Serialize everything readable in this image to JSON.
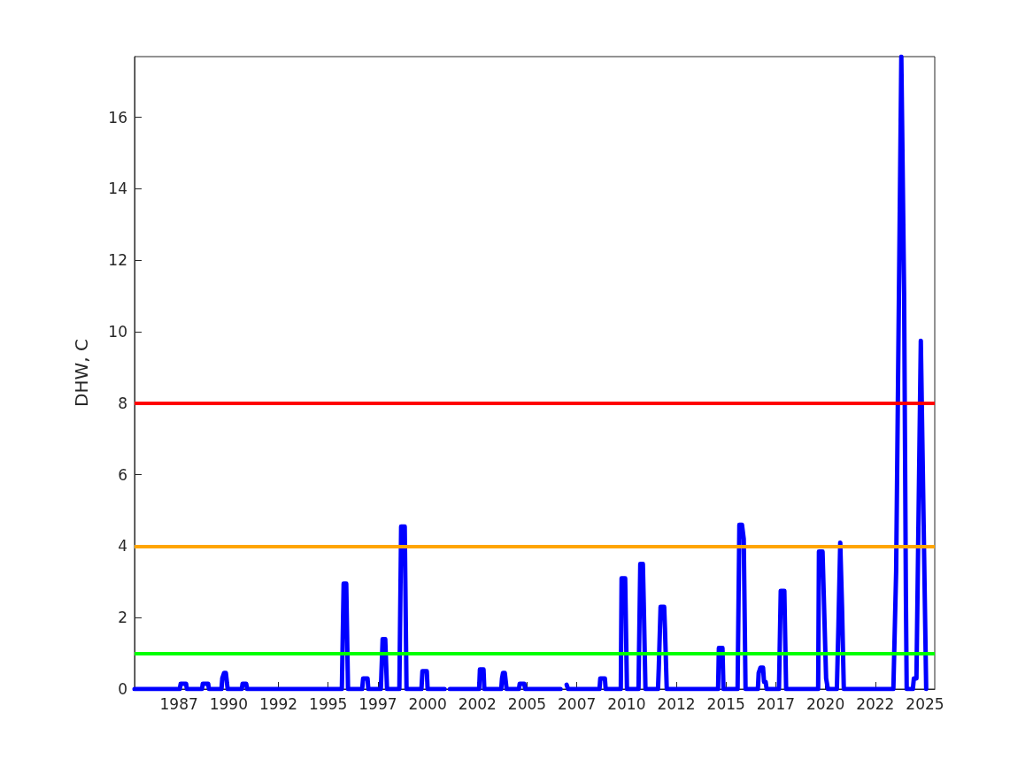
{
  "chart_data": {
    "type": "line",
    "ylabel": "DHW, C",
    "x": [
      1985.27,
      1987.54,
      1987.59,
      1987.86,
      1987.9,
      1988.66,
      1988.7,
      1988.97,
      1989.01,
      1989.64,
      1989.68,
      1989.77,
      1989.86,
      1989.95,
      1990.66,
      1990.7,
      1990.88,
      1990.93,
      1995.69,
      1995.78,
      1995.91,
      1996.0,
      1996.71,
      1996.76,
      1996.98,
      1997.02,
      1997.65,
      1997.74,
      1997.87,
      1997.96,
      1998.58,
      1998.67,
      1998.85,
      1998.94,
      1999.69,
      1999.74,
      1999.96,
      2000.0,
      2000.85,
      2000.95,
      2001.12,
      2002.59,
      2002.63,
      2002.81,
      2002.85,
      2003.7,
      2003.74,
      2003.79,
      2003.88,
      2003.97,
      2004.59,
      2004.63,
      2004.86,
      2004.9,
      2006.68,
      2006.75,
      2006.99,
      2007.06,
      2008.64,
      2008.68,
      2008.91,
      2008.95,
      2009.71,
      2009.75,
      2009.93,
      2010.02,
      2010.6,
      2010.69,
      2010.82,
      2010.86,
      2010.95,
      2011.58,
      2011.62,
      2011.71,
      2011.89,
      2011.93,
      2012.02,
      2014.6,
      2014.64,
      2014.82,
      2014.87,
      2015.58,
      2015.67,
      2015.8,
      2015.89,
      2015.98,
      2016.6,
      2016.64,
      2016.73,
      2016.86,
      2016.91,
      2016.99,
      2017.04,
      2017.66,
      2017.75,
      2017.93,
      2018.02,
      2019.63,
      2019.67,
      2019.85,
      2020.03,
      2020.12,
      2020.57,
      2020.65,
      2020.74,
      2020.83,
      2020.92,
      2023.41,
      2023.55,
      2023.81,
      2023.95,
      2024.04,
      2024.08,
      2024.39,
      2024.44,
      2024.57,
      2024.79,
      2025.06
    ],
    "series": [
      {
        "color": "#0000ff",
        "values": [
          0,
          0,
          0.15,
          0.15,
          0,
          0,
          0.15,
          0.15,
          0,
          0,
          0.3,
          0.45,
          0.45,
          0,
          0,
          0.15,
          0.15,
          0,
          0,
          2.95,
          2.95,
          0,
          0,
          0.3,
          0.3,
          0,
          0,
          1.4,
          1.4,
          0,
          0,
          4.55,
          4.55,
          0,
          0,
          0.5,
          0.5,
          0,
          0,
          null,
          0,
          0,
          0.55,
          0.55,
          0,
          0,
          0.3,
          0.45,
          0.45,
          0,
          0,
          0.15,
          0.15,
          0,
          0,
          null,
          0.12,
          0,
          0,
          0.3,
          0.3,
          0,
          0,
          3.1,
          3.1,
          0,
          0,
          3.5,
          3.5,
          2.5,
          0,
          0,
          0.6,
          2.3,
          2.3,
          1.7,
          0,
          0,
          1.15,
          1.15,
          0,
          0,
          4.6,
          4.6,
          4.2,
          0,
          0,
          0.45,
          0.6,
          0.6,
          0.2,
          0.2,
          0,
          0,
          2.75,
          2.75,
          0,
          0,
          3.85,
          3.85,
          0.3,
          0,
          0,
          1.8,
          4.1,
          2.3,
          0,
          0,
          3.3,
          17.7,
          11.1,
          2.6,
          0,
          0,
          0.3,
          0.3,
          9.75,
          0
        ]
      }
    ],
    "xlim": [
      1985.27,
      2025.49
    ],
    "ylim": [
      0,
      17.7
    ],
    "xticks": [
      {
        "value": 1987.5,
        "label": "1987"
      },
      1990,
      {
        "value": 1992.5,
        "label": "1992"
      },
      1995,
      {
        "value": 1997.5,
        "label": "1997"
      },
      2000,
      {
        "value": 2002.5,
        "label": "2002"
      },
      2005,
      {
        "value": 2007.5,
        "label": "2007"
      },
      2010,
      {
        "value": 2012.5,
        "label": "2012"
      },
      2015,
      {
        "value": 2017.5,
        "label": "2017"
      },
      2020,
      {
        "value": 2022.5,
        "label": "2022"
      },
      2025
    ],
    "yticks": [
      0,
      2,
      4,
      6,
      8,
      10,
      12,
      14,
      16
    ],
    "ref_lines": [
      {
        "axis": "y",
        "value": 8,
        "color": "#ff0000"
      },
      {
        "axis": "y",
        "value": 4,
        "color": "#ffa500"
      },
      {
        "axis": "y",
        "value": 1,
        "color": "#00ff00"
      }
    ],
    "grid": false
  }
}
